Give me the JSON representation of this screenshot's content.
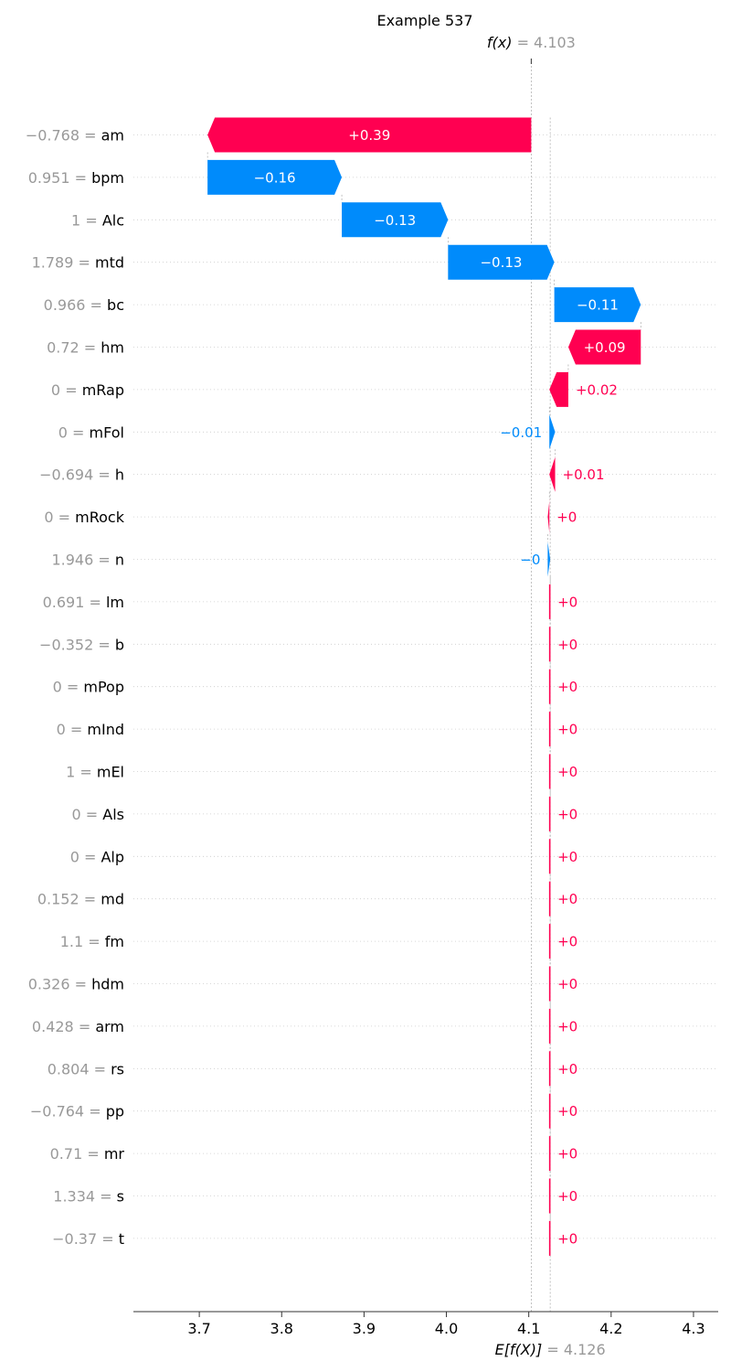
{
  "chart_data": {
    "type": "waterfall",
    "title": "Example 537",
    "fx_label": "f(x)",
    "fx_value_text": "= 4.103",
    "fx_value": 4.103,
    "ex_label": "E[f(X)]",
    "ex_value_text": "= 4.126",
    "ex_value": 4.126,
    "xlim": [
      3.62,
      4.33
    ],
    "xticks": [
      "3.7",
      "3.8",
      "3.9",
      "4.0",
      "4.1",
      "4.2",
      "4.3"
    ],
    "features": [
      {
        "value": "−0.768",
        "name": "am",
        "start": 4.103,
        "end": 3.71,
        "label": "+0.39"
      },
      {
        "value": "0.951",
        "name": "bpm",
        "start": 3.71,
        "end": 3.873,
        "label": "−0.16"
      },
      {
        "value": "1",
        "name": "Alc",
        "start": 3.873,
        "end": 4.002,
        "label": "−0.13"
      },
      {
        "value": "1.789",
        "name": "mtd",
        "start": 4.002,
        "end": 4.131,
        "label": "−0.13"
      },
      {
        "value": "0.966",
        "name": "bc",
        "start": 4.131,
        "end": 4.236,
        "label": "−0.11"
      },
      {
        "value": "0.72",
        "name": "hm",
        "start": 4.236,
        "end": 4.148,
        "label": "+0.09"
      },
      {
        "value": "0",
        "name": "mRap",
        "start": 4.148,
        "end": 4.125,
        "label": "+0.02"
      },
      {
        "value": "0",
        "name": "mFol",
        "start": 4.125,
        "end": 4.132,
        "label": "−0.01"
      },
      {
        "value": "−0.694",
        "name": "h",
        "start": 4.132,
        "end": 4.125,
        "label": "+0.01"
      },
      {
        "value": "0",
        "name": "mRock",
        "start": 4.125,
        "end": 4.123,
        "label": "+0"
      },
      {
        "value": "1.946",
        "name": "n",
        "start": 4.123,
        "end": 4.126,
        "label": "−0"
      },
      {
        "value": "0.691",
        "name": "lm",
        "start": 4.126,
        "end": 4.1255,
        "label": "+0"
      },
      {
        "value": "−0.352",
        "name": "b",
        "start": 4.126,
        "end": 4.1255,
        "label": "+0"
      },
      {
        "value": "0",
        "name": "mPop",
        "start": 4.126,
        "end": 4.1255,
        "label": "+0"
      },
      {
        "value": "0",
        "name": "mInd",
        "start": 4.126,
        "end": 4.1255,
        "label": "+0"
      },
      {
        "value": "1",
        "name": "mEl",
        "start": 4.126,
        "end": 4.1255,
        "label": "+0"
      },
      {
        "value": "0",
        "name": "Als",
        "start": 4.126,
        "end": 4.1255,
        "label": "+0"
      },
      {
        "value": "0",
        "name": "Alp",
        "start": 4.126,
        "end": 4.1255,
        "label": "+0"
      },
      {
        "value": "0.152",
        "name": "md",
        "start": 4.126,
        "end": 4.1255,
        "label": "+0"
      },
      {
        "value": "1.1",
        "name": "fm",
        "start": 4.126,
        "end": 4.1255,
        "label": "+0"
      },
      {
        "value": "0.326",
        "name": "hdm",
        "start": 4.126,
        "end": 4.1255,
        "label": "+0"
      },
      {
        "value": "0.428",
        "name": "arm",
        "start": 4.126,
        "end": 4.1255,
        "label": "+0"
      },
      {
        "value": "0.804",
        "name": "rs",
        "start": 4.126,
        "end": 4.1255,
        "label": "+0"
      },
      {
        "value": "−0.764",
        "name": "pp",
        "start": 4.126,
        "end": 4.1255,
        "label": "+0"
      },
      {
        "value": "0.71",
        "name": "mr",
        "start": 4.126,
        "end": 4.1255,
        "label": "+0"
      },
      {
        "value": "1.334",
        "name": "s",
        "start": 4.126,
        "end": 4.1255,
        "label": "+0"
      },
      {
        "value": "−0.37",
        "name": "t",
        "start": 4.126,
        "end": 4.1255,
        "label": "+0"
      }
    ],
    "colors": {
      "positive": "#ff0051",
      "negative": "#008bfb",
      "muted_text": "#999999",
      "axis": "#333333",
      "grid": "#cccccc"
    }
  }
}
